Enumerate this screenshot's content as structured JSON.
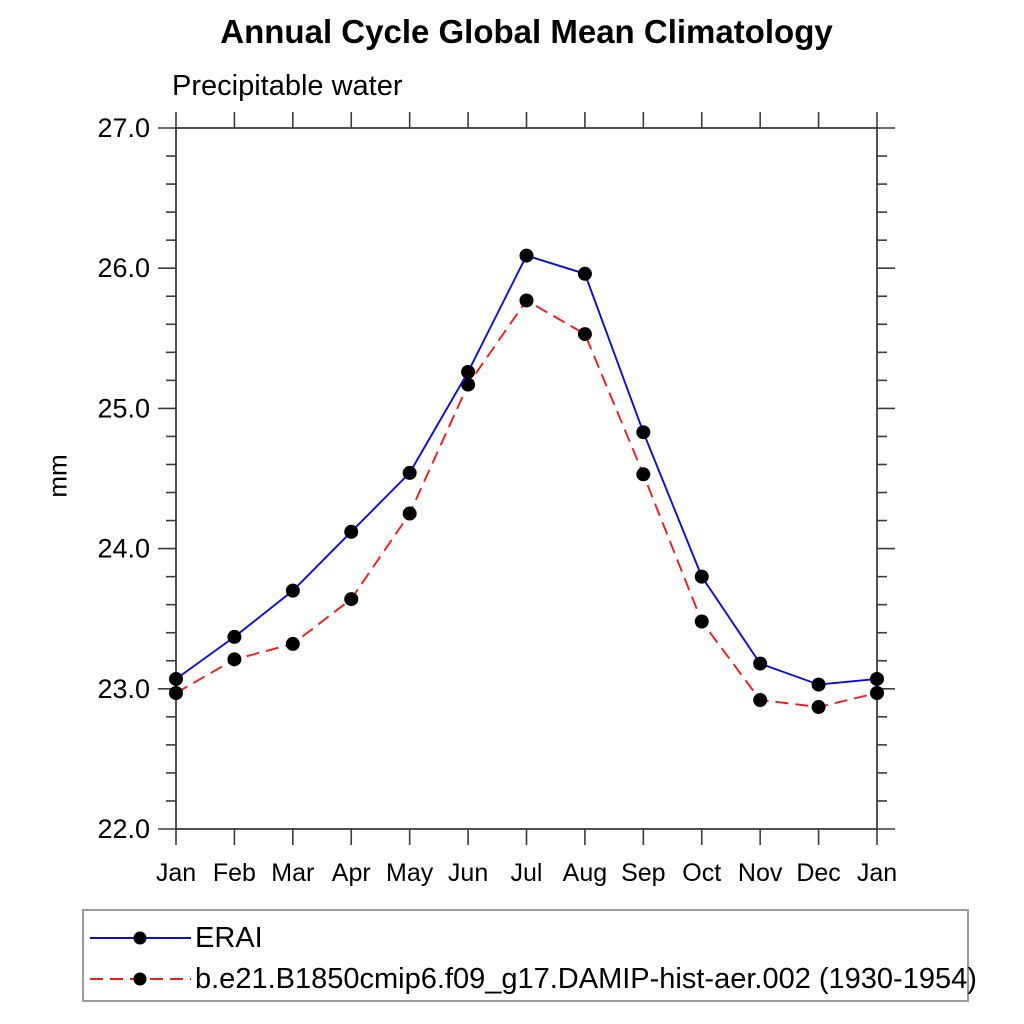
{
  "title": "Annual Cycle Global Mean Climatology",
  "subtitle": "Precipitable water",
  "y_axis": {
    "unit_label": "mm",
    "tick_labels": [
      "22.0",
      "23.0",
      "24.0",
      "25.0",
      "26.0",
      "27.0"
    ]
  },
  "x_axis": {
    "tick_labels": [
      "Jan",
      "Feb",
      "Mar",
      "Apr",
      "May",
      "Jun",
      "Jul",
      "Aug",
      "Sep",
      "Oct",
      "Nov",
      "Dec",
      "Jan"
    ]
  },
  "legend": {
    "entries": [
      {
        "label": "ERAI",
        "line_style": "solid",
        "marker": "filled-circle"
      },
      {
        "label": "b.e21.B1850cmip6.f09_g17.DAMIP-hist-aer.002 (1930-1954)",
        "line_style": "dashed",
        "marker": "filled-circle"
      }
    ]
  },
  "colors": {
    "series_blue": "#0b0be0",
    "series_red": "#ee1c1c",
    "marker_black": "#000000",
    "frame": "#3c3c3c",
    "legend_border": "#9b9b9b"
  },
  "chart_data": {
    "type": "line",
    "title": "Annual Cycle Global Mean Climatology",
    "subtitle": "Precipitable water",
    "xlabel": "",
    "ylabel": "mm",
    "ylim": [
      22.0,
      27.0
    ],
    "y_major_step": 1.0,
    "y_minor_step": 0.2,
    "y_tick_labels": [
      "22.0",
      "23.0",
      "24.0",
      "25.0",
      "26.0",
      "27.0"
    ],
    "categories": [
      "Jan",
      "Feb",
      "Mar",
      "Apr",
      "May",
      "Jun",
      "Jul",
      "Aug",
      "Sep",
      "Oct",
      "Nov",
      "Dec",
      "Jan"
    ],
    "grid": false,
    "legend_position": "bottom-left",
    "series": [
      {
        "name": "ERAI",
        "color": "#0b0be0",
        "line_style": "solid",
        "marker": "circle",
        "marker_color": "#000000",
        "values": [
          23.07,
          23.37,
          23.7,
          24.12,
          24.54,
          25.26,
          26.09,
          25.96,
          24.83,
          23.8,
          23.18,
          23.03,
          23.07
        ]
      },
      {
        "name": "b.e21.B1850cmip6.f09_g17.DAMIP-hist-aer.002 (1930-1954)",
        "color": "#ee1c1c",
        "line_style": "dashed",
        "marker": "circle",
        "marker_color": "#000000",
        "values": [
          22.97,
          23.21,
          23.32,
          23.64,
          24.25,
          25.17,
          25.77,
          25.53,
          24.53,
          23.48,
          22.92,
          22.87,
          22.97
        ]
      }
    ]
  }
}
